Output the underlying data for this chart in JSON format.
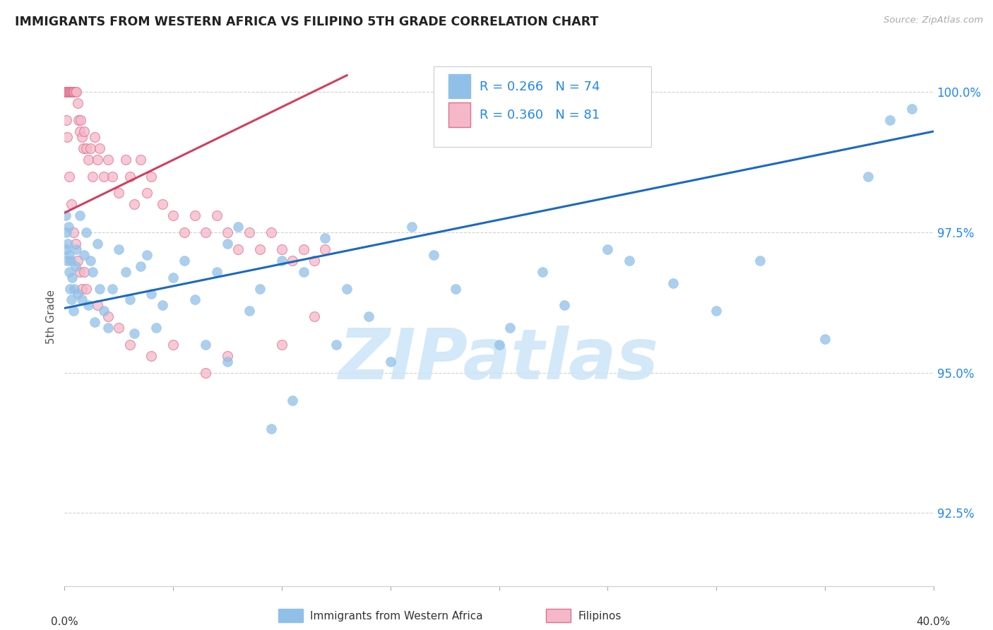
{
  "title": "IMMIGRANTS FROM WESTERN AFRICA VS FILIPINO 5TH GRADE CORRELATION CHART",
  "source": "Source: ZipAtlas.com",
  "ylabel": "5th Grade",
  "ylabel_right_ticks": [
    92.5,
    95.0,
    97.5,
    100.0
  ],
  "ylabel_right_labels": [
    "92.5%",
    "95.0%",
    "97.5%",
    "100.0%"
  ],
  "xmin": 0.0,
  "xmax": 40.0,
  "ymin": 91.2,
  "ymax": 100.8,
  "blue_color": "#90c0e8",
  "blue_edge_color": "#90c0e8",
  "blue_line_color": "#1a6abf",
  "pink_color": "#f5b8c8",
  "pink_edge_color": "#e07090",
  "pink_line_color": "#d04060",
  "legend_blue_text": "R = 0.266   N = 74",
  "legend_pink_text": "R = 0.360   N = 81",
  "legend_label_blue": "Immigrants from Western Africa",
  "legend_label_pink": "Filipinos",
  "watermark": "ZIPatlas",
  "blue_trend_x0": 0.0,
  "blue_trend_x1": 40.0,
  "blue_trend_y0": 96.15,
  "blue_trend_y1": 99.3,
  "pink_trend_x0": 0.0,
  "pink_trend_x1": 13.0,
  "pink_trend_y0": 97.85,
  "pink_trend_y1": 100.3,
  "blue_points_x": [
    0.05,
    0.08,
    0.1,
    0.12,
    0.15,
    0.18,
    0.2,
    0.22,
    0.25,
    0.28,
    0.3,
    0.35,
    0.4,
    0.45,
    0.5,
    0.55,
    0.6,
    0.7,
    0.8,
    0.9,
    1.0,
    1.1,
    1.2,
    1.3,
    1.4,
    1.5,
    1.6,
    1.8,
    2.0,
    2.2,
    2.5,
    2.8,
    3.0,
    3.2,
    3.5,
    3.8,
    4.0,
    4.2,
    4.5,
    5.0,
    5.5,
    6.0,
    6.5,
    7.0,
    7.5,
    8.0,
    8.5,
    9.0,
    10.0,
    11.0,
    12.0,
    13.0,
    14.0,
    15.0,
    16.0,
    17.0,
    18.0,
    20.0,
    22.0,
    25.0,
    28.0,
    30.0,
    32.0,
    35.0,
    37.0,
    38.0,
    39.0,
    20.5,
    23.0,
    26.0,
    10.5,
    12.5,
    9.5,
    7.5
  ],
  "blue_points_y": [
    97.8,
    97.5,
    97.2,
    97.0,
    97.3,
    97.6,
    96.8,
    97.1,
    96.5,
    97.0,
    96.3,
    96.7,
    96.1,
    96.5,
    96.9,
    97.2,
    96.4,
    97.8,
    96.3,
    97.1,
    97.5,
    96.2,
    97.0,
    96.8,
    95.9,
    97.3,
    96.5,
    96.1,
    95.8,
    96.5,
    97.2,
    96.8,
    96.3,
    95.7,
    96.9,
    97.1,
    96.4,
    95.8,
    96.2,
    96.7,
    97.0,
    96.3,
    95.5,
    96.8,
    97.3,
    97.6,
    96.1,
    96.5,
    97.0,
    96.8,
    97.4,
    96.5,
    96.0,
    95.2,
    97.6,
    97.1,
    96.5,
    95.5,
    96.8,
    97.2,
    96.6,
    96.1,
    97.0,
    95.6,
    98.5,
    99.5,
    99.7,
    95.8,
    96.2,
    97.0,
    94.5,
    95.5,
    94.0,
    95.2
  ],
  "pink_points_x": [
    0.02,
    0.04,
    0.06,
    0.08,
    0.1,
    0.12,
    0.15,
    0.18,
    0.2,
    0.22,
    0.25,
    0.28,
    0.3,
    0.35,
    0.38,
    0.4,
    0.42,
    0.45,
    0.5,
    0.55,
    0.6,
    0.65,
    0.7,
    0.75,
    0.8,
    0.85,
    0.9,
    1.0,
    1.1,
    1.2,
    1.3,
    1.4,
    1.5,
    1.6,
    1.8,
    2.0,
    2.2,
    2.5,
    2.8,
    3.0,
    3.2,
    3.5,
    3.8,
    4.0,
    4.5,
    5.0,
    5.5,
    6.0,
    6.5,
    7.0,
    7.5,
    8.0,
    8.5,
    9.0,
    9.5,
    10.0,
    10.5,
    11.0,
    11.5,
    12.0,
    0.08,
    0.12,
    0.2,
    0.3,
    0.4,
    0.5,
    0.6,
    0.7,
    0.8,
    0.9,
    1.0,
    1.5,
    2.0,
    2.5,
    3.0,
    4.0,
    5.0,
    6.5,
    7.5,
    10.0,
    11.5
  ],
  "pink_points_y": [
    100.0,
    100.0,
    100.0,
    100.0,
    100.0,
    100.0,
    100.0,
    100.0,
    100.0,
    100.0,
    100.0,
    100.0,
    100.0,
    100.0,
    100.0,
    100.0,
    100.0,
    100.0,
    100.0,
    100.0,
    99.8,
    99.5,
    99.3,
    99.5,
    99.2,
    99.0,
    99.3,
    99.0,
    98.8,
    99.0,
    98.5,
    99.2,
    98.8,
    99.0,
    98.5,
    98.8,
    98.5,
    98.2,
    98.8,
    98.5,
    98.0,
    98.8,
    98.2,
    98.5,
    98.0,
    97.8,
    97.5,
    97.8,
    97.5,
    97.8,
    97.5,
    97.2,
    97.5,
    97.2,
    97.5,
    97.2,
    97.0,
    97.2,
    97.0,
    97.2,
    99.5,
    99.2,
    98.5,
    98.0,
    97.5,
    97.3,
    97.0,
    96.8,
    96.5,
    96.8,
    96.5,
    96.2,
    96.0,
    95.8,
    95.5,
    95.3,
    95.5,
    95.0,
    95.3,
    95.5,
    96.0
  ]
}
